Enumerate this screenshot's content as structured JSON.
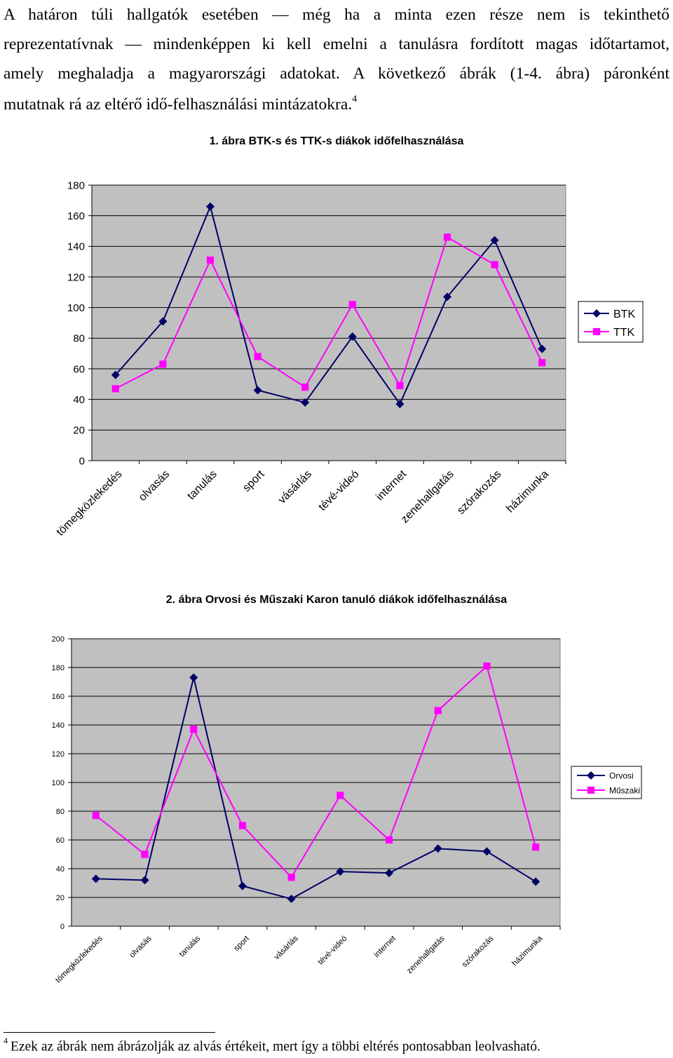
{
  "intro": {
    "lines": [
      "A határon túli hallgatók esetében — még ha a minta ezen része nem is tekinthető",
      "reprezentatívnak — mindenképpen ki kell emelni a tanulásra fordított magas időtartamot,",
      "amely meghaladja a magyarországi adatokat. A következő ábrák (1-4. ábra) páronként"
    ],
    "last_line": "mutatnak rá az eltérő idő-felhasználási mintázatokra.",
    "footnote_ref": "4"
  },
  "footnote": {
    "number": "4",
    "text": "Ezek az ábrák nem ábrázolják az alvás értékeit, mert így a többi eltérés pontosabban leolvasható."
  },
  "colors": {
    "series_navy": "#000066",
    "series_magenta": "#ff00ff",
    "plot_bg": "#c0c0c0"
  },
  "chart_data": [
    {
      "type": "line",
      "title": "1. ábra BTK-s és TTK-s diákok időfelhasználása",
      "categories": [
        "tömegközlekedés",
        "olvasás",
        "tanulás",
        "sport",
        "vásárlás",
        "tévé-videó",
        "internet",
        "zenehallgatás",
        "szórakozás",
        "házimunka"
      ],
      "series": [
        {
          "name": "BTK",
          "marker": "diamond",
          "color": "#000066",
          "values": [
            56,
            91,
            166,
            46,
            38,
            81,
            37,
            107,
            144,
            73
          ]
        },
        {
          "name": "TTK",
          "marker": "square",
          "color": "#ff00ff",
          "values": [
            47,
            63,
            131,
            68,
            48,
            102,
            49,
            146,
            128,
            64
          ]
        }
      ],
      "ylim": [
        0,
        180
      ],
      "yticks": [
        0,
        20,
        40,
        60,
        80,
        100,
        120,
        140,
        160,
        180
      ],
      "xlabel": "",
      "ylabel": "",
      "legend": "right"
    },
    {
      "type": "line",
      "title": "2. ábra Orvosi és Műszaki Karon tanuló diákok időfelhasználása",
      "categories": [
        "tömegközlekedés",
        "olvasás",
        "tanulás",
        "sport",
        "vásárlás",
        "tévé-videó",
        "internet",
        "zenehallgatás",
        "szórakozás",
        "házimunka"
      ],
      "series": [
        {
          "name": "Orvosi",
          "marker": "diamond",
          "color": "#000066",
          "values": [
            33,
            32,
            173,
            28,
            19,
            38,
            37,
            54,
            52,
            31
          ]
        },
        {
          "name": "Műszaki",
          "marker": "square",
          "color": "#ff00ff",
          "values": [
            77,
            50,
            137,
            70,
            34,
            91,
            60,
            150,
            181,
            55
          ]
        }
      ],
      "ylim": [
        0,
        200
      ],
      "yticks": [
        0,
        20,
        40,
        60,
        80,
        100,
        120,
        140,
        160,
        180,
        200
      ],
      "xlabel": "",
      "ylabel": "",
      "legend": "right"
    }
  ]
}
